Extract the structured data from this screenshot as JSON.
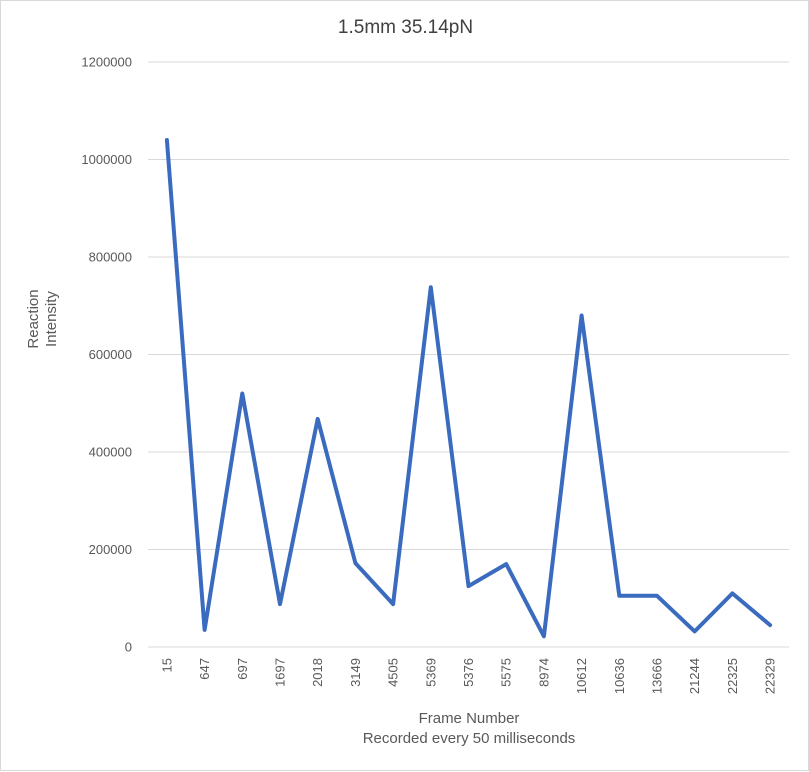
{
  "chart_data": {
    "type": "line",
    "title": "1.5mm 35.14pN",
    "xlabel": "Frame Number",
    "xlabel_sub": "Recorded every 50 milliseconds",
    "ylabel_line1": "Reaction",
    "ylabel_line2": "Intensity",
    "ylim": [
      0,
      1200000
    ],
    "yticks": [
      0,
      200000,
      400000,
      600000,
      800000,
      1000000,
      1200000
    ],
    "grid": "horizontal",
    "legend": "none",
    "categories": [
      "15",
      "647",
      "697",
      "1697",
      "2018",
      "3149",
      "4505",
      "5369",
      "5376",
      "5575",
      "8974",
      "10612",
      "10636",
      "13666",
      "21244",
      "22325",
      "22329"
    ],
    "series": [
      {
        "color": "#3A6BBF",
        "values": [
          1040000,
          35000,
          520000,
          88000,
          468000,
          172000,
          88000,
          738000,
          125000,
          170000,
          22000,
          680000,
          105000,
          105000,
          32000,
          110000,
          45000
        ]
      }
    ]
  }
}
